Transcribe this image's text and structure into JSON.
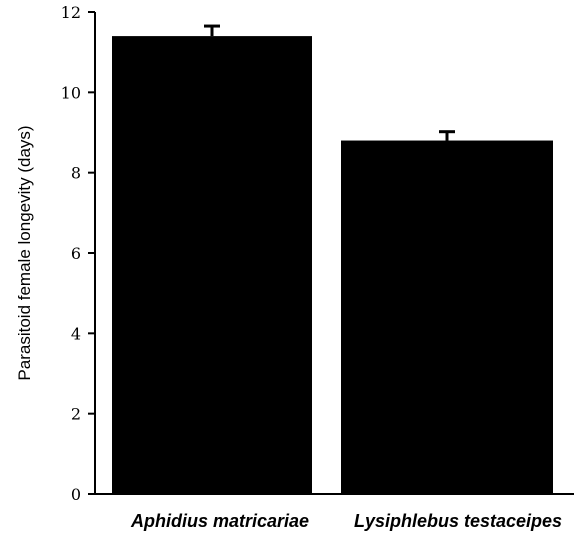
{
  "chart_data": {
    "type": "bar",
    "title": "",
    "xlabel": "",
    "ylabel": "Parasitoid female longevity (days)",
    "categories": [
      "Aphidius matricariae",
      "Lysiphlebus testaceipes"
    ],
    "values": [
      11.4,
      8.8
    ],
    "errors": [
      0.25,
      0.22
    ],
    "ylim": [
      0,
      12
    ],
    "yticks": [
      0,
      2,
      4,
      6,
      8,
      10,
      12
    ],
    "grid": false,
    "legend": "none",
    "bar_color": "#000000"
  }
}
